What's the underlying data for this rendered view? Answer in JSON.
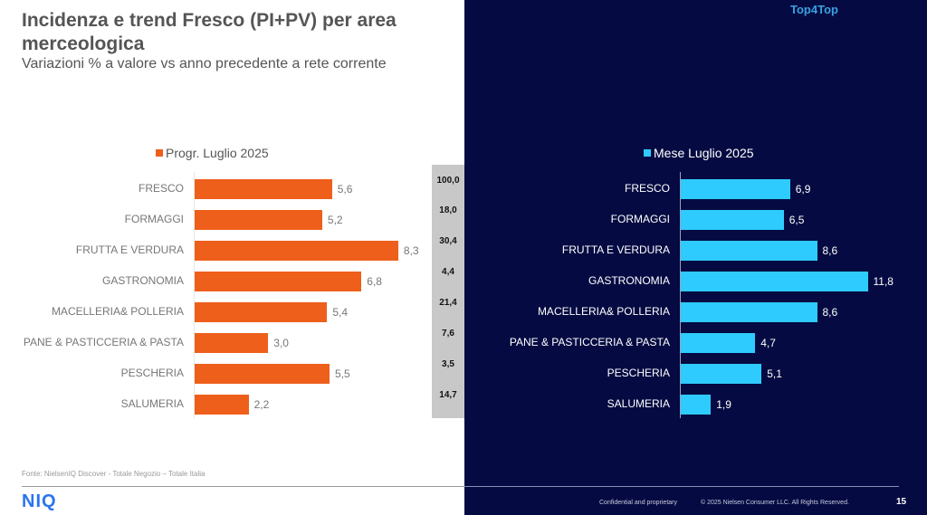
{
  "header": {
    "title": "Incidenza e trend Fresco (PI+PV) per area merceologica",
    "subtitle": "Variazioni % a valore vs anno precedente a rete corrente",
    "brand": "Top4Top"
  },
  "chart_data": [
    {
      "type": "bar",
      "orientation": "horizontal",
      "legend": "Progr. Luglio 2025",
      "color": "#ee5f1b",
      "categories": [
        "FRESCO",
        "FORMAGGI",
        "FRUTTA E VERDURA",
        "GASTRONOMIA",
        "MACELLERIA& POLLERIA",
        "PANE & PASTICCERIA & PASTA",
        "PESCHERIA",
        "SALUMERIA"
      ],
      "values": [
        5.6,
        5.2,
        8.3,
        6.8,
        5.4,
        3.0,
        5.5,
        2.2
      ],
      "labels": [
        "5,6",
        "5,2",
        "8,3",
        "6,8",
        "5,4",
        "3,0",
        "5,5",
        "2,2"
      ],
      "incidence": [
        "100,0",
        "18,0",
        "30,4",
        "4,4",
        "21,4",
        "7,6",
        "3,5",
        "14,7"
      ]
    },
    {
      "type": "bar",
      "orientation": "horizontal",
      "legend": "Mese Luglio 2025",
      "color": "#2ecbff",
      "categories": [
        "FRESCO",
        "FORMAGGI",
        "FRUTTA E VERDURA",
        "GASTRONOMIA",
        "MACELLERIA& POLLERIA",
        "PANE & PASTICCERIA & PASTA",
        "PESCHERIA",
        "SALUMERIA"
      ],
      "values": [
        6.9,
        6.5,
        8.6,
        11.8,
        8.6,
        4.7,
        5.1,
        1.9
      ],
      "labels": [
        "6,9",
        "6,5",
        "8,6",
        "11,8",
        "8,6",
        "4,7",
        "5,1",
        "1,9"
      ]
    }
  ],
  "footer": {
    "source": "Fonte: NielsenIQ Discover - Totale Negozio – Totale Italia",
    "logo": "NIQ",
    "confidential": "Confidential and proprietary",
    "copyright": "© 2025 Nielsen Consumer LLC. All Rights Reserved.",
    "page_number": "15"
  }
}
